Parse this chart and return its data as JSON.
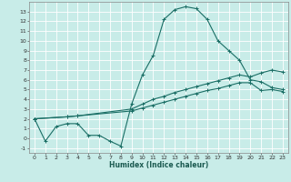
{
  "xlabel": "Humidex (Indice chaleur)",
  "bg_color": "#c8ece8",
  "grid_color": "#aaddda",
  "line_color": "#1a6e65",
  "xlim": [
    -0.5,
    23.5
  ],
  "ylim": [
    -1.5,
    14.0
  ],
  "xticks": [
    0,
    1,
    2,
    3,
    4,
    5,
    6,
    7,
    8,
    9,
    10,
    11,
    12,
    13,
    14,
    15,
    16,
    17,
    18,
    19,
    20,
    21,
    22,
    23
  ],
  "yticks": [
    -1,
    0,
    1,
    2,
    3,
    4,
    5,
    6,
    7,
    8,
    9,
    10,
    11,
    12,
    13
  ],
  "line1_x": [
    0,
    1,
    2,
    3,
    4,
    5,
    6,
    7,
    8,
    9,
    10,
    11,
    12,
    13,
    14,
    15,
    16,
    17,
    18,
    19,
    20,
    21,
    22,
    23
  ],
  "line1_y": [
    2.0,
    -0.3,
    1.2,
    1.5,
    1.5,
    0.3,
    0.3,
    -0.3,
    -0.8,
    3.5,
    6.5,
    8.5,
    12.2,
    13.2,
    13.5,
    13.3,
    12.2,
    10.0,
    9.0,
    8.0,
    6.0,
    5.8,
    5.2,
    5.0
  ],
  "line2_x": [
    0,
    3,
    4,
    9,
    10,
    11,
    12,
    13,
    14,
    15,
    16,
    17,
    18,
    19,
    20,
    21,
    22,
    23
  ],
  "line2_y": [
    2.0,
    2.2,
    2.3,
    3.0,
    3.5,
    4.0,
    4.3,
    4.7,
    5.0,
    5.3,
    5.6,
    5.9,
    6.2,
    6.5,
    6.3,
    6.7,
    7.0,
    6.8
  ],
  "line3_x": [
    0,
    3,
    4,
    9,
    10,
    11,
    12,
    13,
    14,
    15,
    16,
    17,
    18,
    19,
    20,
    21,
    22,
    23
  ],
  "line3_y": [
    2.0,
    2.2,
    2.3,
    2.8,
    3.1,
    3.4,
    3.7,
    4.0,
    4.3,
    4.6,
    4.9,
    5.1,
    5.4,
    5.7,
    5.7,
    4.9,
    5.0,
    4.8
  ]
}
